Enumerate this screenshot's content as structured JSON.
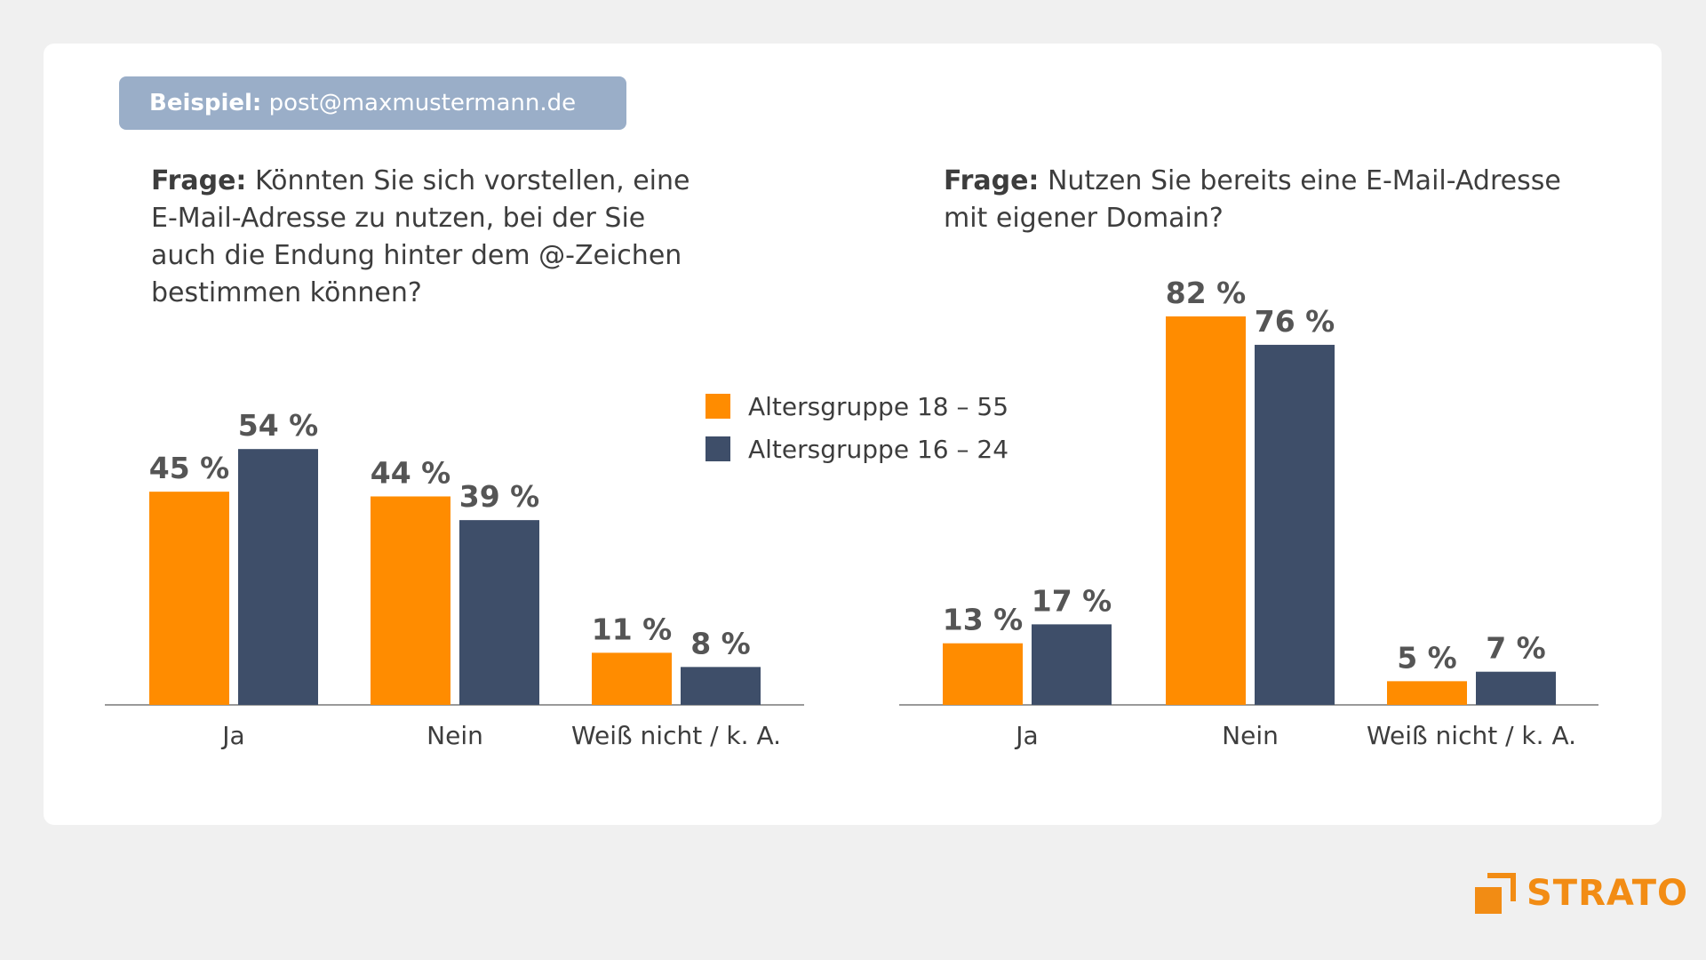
{
  "example": {
    "label": "Beispiel:",
    "value": "post@maxmustermann.de"
  },
  "legend": [
    {
      "label": "Altersgruppe 18 – 55",
      "color": "#ff8c00"
    },
    {
      "label": "Altersgruppe 16 – 24",
      "color": "#3e4e69"
    }
  ],
  "chart_data": [
    {
      "type": "bar",
      "title_label": "Frage:",
      "title": "Könnten Sie sich vorstellen, eine E-Mail-Adresse zu nutzen, bei der Sie auch die Endung hinter dem @-Zeichen bestimmen können?",
      "categories": [
        "Ja",
        "Nein",
        "Weiß nicht / k. A."
      ],
      "series": [
        {
          "name": "Altersgruppe 18 – 55",
          "values": [
            45,
            44,
            11
          ]
        },
        {
          "name": "Altersgruppe 16 – 24",
          "values": [
            54,
            39,
            8
          ]
        }
      ],
      "value_suffix": " %",
      "ylim": [
        0,
        100
      ]
    },
    {
      "type": "bar",
      "title_label": "Frage:",
      "title": "Nutzen Sie bereits eine E-Mail-Adresse mit eigener Domain?",
      "categories": [
        "Ja",
        "Nein",
        "Weiß nicht / k. A."
      ],
      "series": [
        {
          "name": "Altersgruppe 18 – 55",
          "values": [
            13,
            82,
            5
          ]
        },
        {
          "name": "Altersgruppe 16 – 24",
          "values": [
            17,
            76,
            7
          ]
        }
      ],
      "value_suffix": " %",
      "ylim": [
        0,
        100
      ]
    }
  ],
  "brand": {
    "name": "STRATO",
    "color": "#f28c14",
    "icon": "strato-logo-icon"
  }
}
